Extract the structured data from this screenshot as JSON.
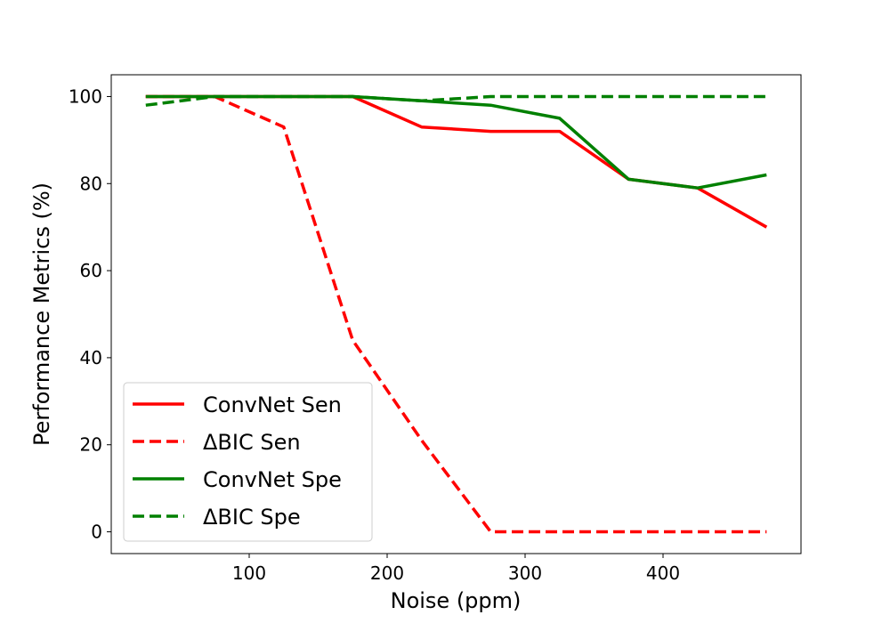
{
  "chart_data": {
    "type": "line",
    "xlabel": "Noise (ppm)",
    "ylabel": "Performance Metrics (%)",
    "xlim": [
      0,
      500
    ],
    "ylim": [
      -5,
      105
    ],
    "xticks": [
      100,
      200,
      300,
      400
    ],
    "yticks": [
      0,
      20,
      40,
      60,
      80,
      100
    ],
    "grid": false,
    "legend_position": "lower-left",
    "x": [
      25,
      75,
      125,
      175,
      225,
      275,
      325,
      375,
      425,
      475
    ],
    "series": [
      {
        "name": "ConvNet Sen",
        "color": "#ff0000",
        "dashed": false,
        "values": [
          100,
          100,
          100,
          100,
          93,
          92,
          92,
          81,
          79,
          70
        ]
      },
      {
        "name": "ΔBIC Sen",
        "color": "#ff0000",
        "dashed": true,
        "values": [
          100,
          100,
          93,
          44,
          21,
          0,
          0,
          0,
          0,
          0
        ]
      },
      {
        "name": "ConvNet Spe",
        "color": "#008000",
        "dashed": false,
        "values": [
          100,
          100,
          100,
          100,
          99,
          98,
          95,
          81,
          79,
          82
        ]
      },
      {
        "name": "ΔBIC Spe",
        "color": "#008000",
        "dashed": true,
        "values": [
          98,
          100,
          100,
          100,
          99,
          100,
          100,
          100,
          100,
          100
        ]
      }
    ]
  }
}
